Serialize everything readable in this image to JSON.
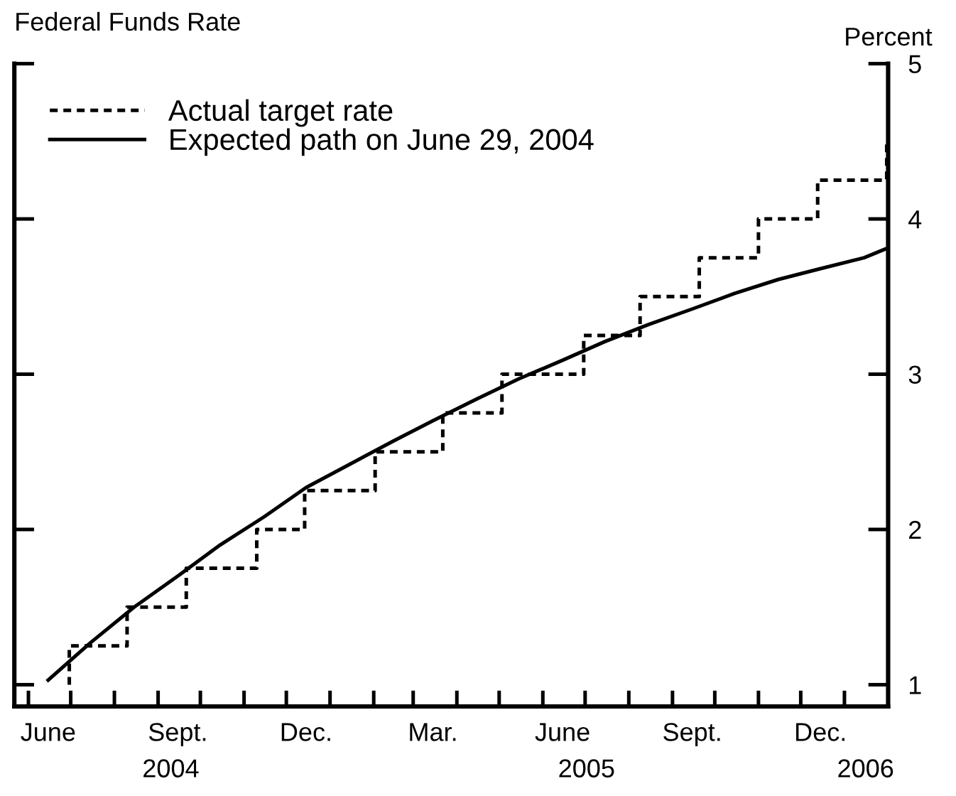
{
  "chart_data": {
    "type": "line",
    "title": "Federal Funds Rate",
    "ylabel": "Percent",
    "series": [
      {
        "name": "Actual target rate",
        "type": "step",
        "color": "#000000",
        "line_style": "dashed",
        "x": [
          "2004-06-30",
          "2004-06-30",
          "2004-08-10",
          "2004-09-21",
          "2004-11-10",
          "2004-12-14",
          "2005-02-02",
          "2005-03-22",
          "2005-05-03",
          "2005-06-30",
          "2005-08-09",
          "2005-09-20",
          "2005-11-01",
          "2005-12-13",
          "2006-01-31"
        ],
        "values": [
          1.0,
          1.25,
          1.5,
          1.75,
          2.0,
          2.25,
          2.5,
          2.75,
          3.0,
          3.25,
          3.5,
          3.75,
          4.0,
          4.25,
          4.5
        ]
      },
      {
        "name": "Expected path on June 29, 2004",
        "color": "#000000",
        "line_style": "solid",
        "x": [
          "2004-06-15",
          "2004-07-15",
          "2004-08-15",
          "2004-09-15",
          "2004-10-15",
          "2004-11-15",
          "2004-12-15",
          "2005-01-15",
          "2005-02-15",
          "2005-03-15",
          "2005-04-15",
          "2005-05-15",
          "2005-06-15",
          "2005-07-15",
          "2005-08-15",
          "2005-09-15",
          "2005-10-15",
          "2005-11-15",
          "2005-12-15",
          "2006-01-15",
          "2006-01-31"
        ],
        "values": [
          1.03,
          1.27,
          1.5,
          1.7,
          1.9,
          2.08,
          2.27,
          2.42,
          2.57,
          2.7,
          2.84,
          2.97,
          3.09,
          3.21,
          3.32,
          3.42,
          3.52,
          3.61,
          3.68,
          3.75,
          3.81
        ]
      }
    ],
    "xlim": [
      "2004-05-22",
      "2006-02-01"
    ],
    "xticks": [
      {
        "value": "2004-06-01",
        "label": null
      },
      {
        "value": "2004-07-01",
        "label": null
      },
      {
        "value": "2004-08-01",
        "label": null
      },
      {
        "value": "2004-09-01",
        "label": null
      },
      {
        "value": "2004-10-01",
        "label": null
      },
      {
        "value": "2004-11-01",
        "label": null
      },
      {
        "value": "2004-12-01",
        "label": null
      },
      {
        "value": "2005-01-01",
        "label": null
      },
      {
        "value": "2005-02-01",
        "label": null
      },
      {
        "value": "2005-03-01",
        "label": null
      },
      {
        "value": "2005-04-01",
        "label": null
      },
      {
        "value": "2005-05-01",
        "label": null
      },
      {
        "value": "2005-06-01",
        "label": null
      },
      {
        "value": "2005-07-01",
        "label": null
      },
      {
        "value": "2005-08-01",
        "label": null
      },
      {
        "value": "2005-09-01",
        "label": null
      },
      {
        "value": "2005-10-01",
        "label": null
      },
      {
        "value": "2005-11-01",
        "label": null
      },
      {
        "value": "2005-12-01",
        "label": null
      },
      {
        "value": "2006-01-01",
        "label": null
      },
      {
        "value": "2004-06-15",
        "label": "June"
      },
      {
        "value": "2004-09-15",
        "label": "Sept."
      },
      {
        "value": "2004-12-15",
        "label": "Dec."
      },
      {
        "value": "2005-03-15",
        "label": "Mar."
      },
      {
        "value": "2005-06-15",
        "label": "June"
      },
      {
        "value": "2005-09-15",
        "label": "Sept."
      },
      {
        "value": "2005-12-15",
        "label": "Dec."
      }
    ],
    "x2lim": [
      "2004-05-22",
      "2006-02-01"
    ],
    "x2ticks": [
      {
        "value": "2004-09-10",
        "label": "2004"
      },
      {
        "value": "2005-07-02",
        "label": "2005"
      },
      {
        "value": "2006-01-16",
        "label": "2006"
      }
    ],
    "ylim": [
      0.86,
      5
    ],
    "yticks": [
      1,
      2,
      3,
      4,
      5
    ],
    "legend": "top left",
    "grid": false
  }
}
